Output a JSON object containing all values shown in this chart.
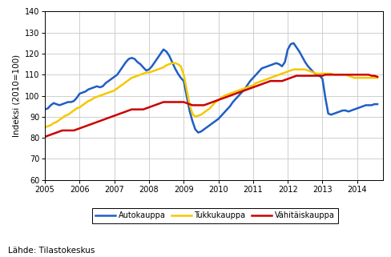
{
  "title": "",
  "ylabel": "Indeksi (2010=100)",
  "source_text": "Lähde: Tilastokeskus",
  "ylim": [
    60,
    140
  ],
  "yticks": [
    60,
    70,
    80,
    90,
    100,
    110,
    120,
    130,
    140
  ],
  "xlim": [
    2005.0,
    2014.75
  ],
  "xticks": [
    2005,
    2006,
    2007,
    2008,
    2009,
    2010,
    2011,
    2012,
    2013,
    2014
  ],
  "legend": [
    "Autokauppa",
    "Tukkukauppa",
    "Vähitäiskauppa"
  ],
  "colors": [
    "#1f5ec4",
    "#f5c800",
    "#cc0000"
  ],
  "linewidth": 1.8,
  "auto_y": [
    93.5,
    94.0,
    95.5,
    96.5,
    96.0,
    95.5,
    96.0,
    96.5,
    97.0,
    97.0,
    97.5,
    99.0,
    101.0,
    101.5,
    102.0,
    103.0,
    103.5,
    104.0,
    104.5,
    104.0,
    104.5,
    106.0,
    107.0,
    108.0,
    109.0,
    110.0,
    112.0,
    114.0,
    116.0,
    117.5,
    118.0,
    117.5,
    116.0,
    115.0,
    113.5,
    112.0,
    112.5,
    114.0,
    116.0,
    118.0,
    120.0,
    122.0,
    121.0,
    119.0,
    116.0,
    113.0,
    110.5,
    108.5,
    107.0,
    100.0,
    93.0,
    88.0,
    84.0,
    82.5,
    83.0,
    84.0,
    85.0,
    86.0,
    87.0,
    88.0,
    89.0,
    90.5,
    92.0,
    93.5,
    95.0,
    97.0,
    98.5,
    100.0,
    101.5,
    103.0,
    105.0,
    107.0,
    108.5,
    110.0,
    111.5,
    113.0,
    113.5,
    114.0,
    114.5,
    115.0,
    115.5,
    115.0,
    114.0,
    116.0,
    122.0,
    124.5,
    125.0,
    123.0,
    121.0,
    118.5,
    116.0,
    114.0,
    112.5,
    111.0,
    110.0,
    109.5,
    108.0,
    99.0,
    91.5,
    91.0,
    91.5,
    92.0,
    92.5,
    93.0,
    93.0,
    92.5,
    93.0,
    93.5,
    94.0,
    94.5,
    95.0,
    95.5,
    95.5,
    95.5,
    96.0,
    96.0
  ],
  "tukku_y": [
    85.0,
    85.5,
    86.0,
    87.0,
    87.5,
    88.5,
    89.5,
    90.5,
    91.0,
    92.0,
    93.0,
    94.0,
    94.5,
    95.5,
    96.5,
    97.5,
    98.0,
    99.0,
    99.5,
    100.0,
    100.5,
    101.0,
    101.5,
    102.0,
    102.5,
    103.5,
    104.5,
    105.5,
    106.5,
    107.5,
    108.5,
    109.0,
    109.5,
    110.0,
    110.5,
    111.0,
    111.0,
    111.5,
    112.0,
    112.5,
    113.0,
    113.5,
    114.5,
    115.0,
    115.5,
    115.5,
    115.0,
    114.0,
    110.0,
    103.0,
    96.0,
    91.5,
    90.0,
    90.5,
    91.0,
    92.0,
    93.0,
    94.0,
    95.5,
    97.0,
    98.0,
    99.0,
    100.0,
    100.5,
    101.0,
    101.5,
    102.0,
    102.5,
    103.0,
    103.5,
    104.0,
    104.5,
    105.0,
    106.0,
    106.5,
    107.0,
    107.5,
    108.0,
    108.5,
    109.0,
    109.5,
    110.0,
    110.5,
    111.0,
    111.5,
    112.0,
    112.5,
    112.5,
    112.5,
    112.5,
    112.5,
    112.0,
    111.5,
    111.0,
    110.5,
    110.5,
    110.5,
    110.5,
    110.5,
    110.5,
    110.0,
    110.0,
    110.0,
    110.0,
    110.0,
    109.5,
    109.0,
    108.5,
    108.5,
    108.5,
    108.5,
    108.5,
    108.5,
    108.5,
    108.5,
    108.5
  ],
  "vahittais_y": [
    80.5,
    81.0,
    81.5,
    82.0,
    82.5,
    83.0,
    83.5,
    83.5,
    83.5,
    83.5,
    83.5,
    84.0,
    84.5,
    85.0,
    85.5,
    86.0,
    86.5,
    87.0,
    87.5,
    88.0,
    88.5,
    89.0,
    89.5,
    90.0,
    90.5,
    91.0,
    91.5,
    92.0,
    92.5,
    93.0,
    93.5,
    93.5,
    93.5,
    93.5,
    93.5,
    94.0,
    94.5,
    95.0,
    95.5,
    96.0,
    96.5,
    97.0,
    97.0,
    97.0,
    97.0,
    97.0,
    97.0,
    97.0,
    97.0,
    96.5,
    96.0,
    95.5,
    95.5,
    95.5,
    95.5,
    95.5,
    96.0,
    96.5,
    97.0,
    97.5,
    98.0,
    98.5,
    99.0,
    99.5,
    100.0,
    100.5,
    101.0,
    101.5,
    102.0,
    102.5,
    103.0,
    103.5,
    104.0,
    104.5,
    105.0,
    105.5,
    106.0,
    106.5,
    107.0,
    107.0,
    107.0,
    107.0,
    107.0,
    107.5,
    108.0,
    108.5,
    109.0,
    109.5,
    109.5,
    109.5,
    109.5,
    109.5,
    109.5,
    109.5,
    109.5,
    109.5,
    109.5,
    110.0,
    110.0,
    110.0,
    110.0,
    110.0,
    110.0,
    110.0,
    110.0,
    110.0,
    110.0,
    110.0,
    110.0,
    110.0,
    110.0,
    110.0,
    110.0,
    109.5,
    109.5,
    109.0
  ]
}
